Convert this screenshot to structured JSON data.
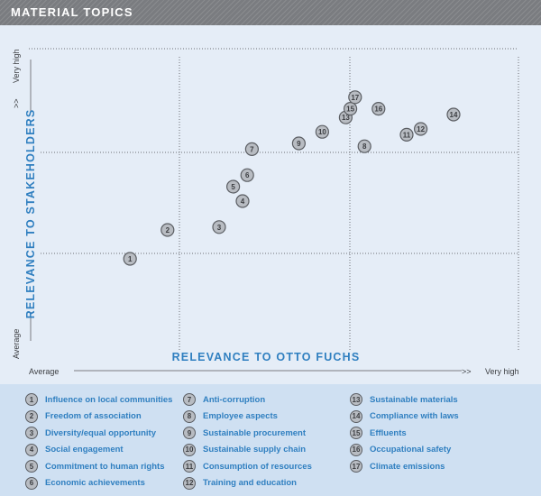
{
  "header": {
    "title": "MATERIAL TOPICS"
  },
  "chart_data": {
    "type": "scatter",
    "xlabel": "RELEVANCE TO OTTO FUCHS",
    "ylabel": "RELEVANCE TO STAKEHOLDERS",
    "x_axis_labels": {
      "low": "Average",
      "high": "Very high",
      "arrow": ">>"
    },
    "y_axis_labels": {
      "low": "Average",
      "high": "Very high",
      "arrow": ">>"
    },
    "xlim": [
      0,
      100
    ],
    "ylim": [
      0,
      100
    ],
    "grid": true,
    "points": [
      {
        "id": "1",
        "x": 21,
        "y": 30
      },
      {
        "id": "2",
        "x": 29,
        "y": 40
      },
      {
        "id": "3",
        "x": 40,
        "y": 41
      },
      {
        "id": "4",
        "x": 45,
        "y": 50
      },
      {
        "id": "5",
        "x": 43,
        "y": 55
      },
      {
        "id": "6",
        "x": 46,
        "y": 59
      },
      {
        "id": "7",
        "x": 47,
        "y": 68
      },
      {
        "id": "8",
        "x": 71,
        "y": 69
      },
      {
        "id": "9",
        "x": 57,
        "y": 70
      },
      {
        "id": "10",
        "x": 62,
        "y": 74
      },
      {
        "id": "11",
        "x": 80,
        "y": 73
      },
      {
        "id": "12",
        "x": 83,
        "y": 75
      },
      {
        "id": "13",
        "x": 67,
        "y": 79
      },
      {
        "id": "14",
        "x": 90,
        "y": 80
      },
      {
        "id": "15",
        "x": 68,
        "y": 82
      },
      {
        "id": "16",
        "x": 74,
        "y": 82
      },
      {
        "id": "17",
        "x": 69,
        "y": 86
      }
    ]
  },
  "legend": {
    "columns": [
      [
        {
          "num": "1",
          "label": "Influence on local communities"
        },
        {
          "num": "2",
          "label": "Freedom of association"
        },
        {
          "num": "3",
          "label": "Diversity/equal opportunity"
        },
        {
          "num": "4",
          "label": "Social engagement"
        },
        {
          "num": "5",
          "label": "Commitment to human rights"
        },
        {
          "num": "6",
          "label": "Economic achievements"
        }
      ],
      [
        {
          "num": "7",
          "label": "Anti-corruption"
        },
        {
          "num": "8",
          "label": "Employee aspects"
        },
        {
          "num": "9",
          "label": "Sustainable procurement"
        },
        {
          "num": "10",
          "label": "Sustainable supply chain"
        },
        {
          "num": "11",
          "label": "Consumption of resources"
        },
        {
          "num": "12",
          "label": "Training and education"
        }
      ],
      [
        {
          "num": "13",
          "label": "Sustainable materials"
        },
        {
          "num": "14",
          "label": "Compliance with laws"
        },
        {
          "num": "15",
          "label": "Effluents"
        },
        {
          "num": "16",
          "label": "Occupational safety"
        },
        {
          "num": "17",
          "label": "Climate emissions"
        }
      ]
    ]
  },
  "colors": {
    "background": "#e5edf7",
    "legend_bg": "#cfe0f2",
    "accent": "#2f7fc0",
    "marker_fill": "#b8bcc2",
    "marker_stroke": "#5b5e63",
    "header_bg": "#7a7c80"
  }
}
